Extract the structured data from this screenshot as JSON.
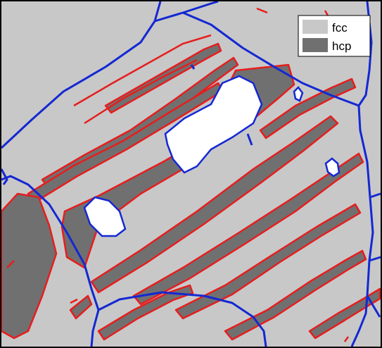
{
  "legend": {
    "items": [
      {
        "label": "fcc",
        "color": "#c8c8c8"
      },
      {
        "label": "hcp",
        "color": "#707070"
      }
    ]
  },
  "colors": {
    "fcc_phase": "#c8c8c8",
    "hcp_phase": "#707070",
    "grain_boundary": "#1428d2",
    "phase_boundary": "#e61e1e",
    "unindexed": "#ffffff",
    "frame": "#000000"
  }
}
